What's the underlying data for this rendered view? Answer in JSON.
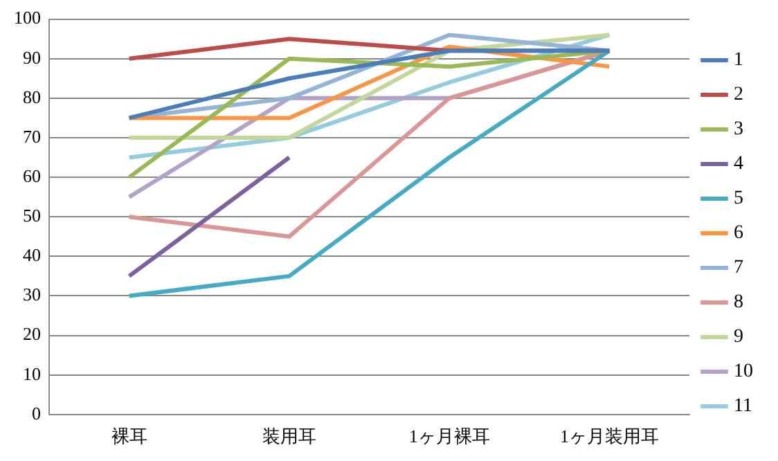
{
  "chart_data": {
    "type": "line",
    "categories": [
      "裸耳",
      "装用耳",
      "1ヶ月裸耳",
      "1ヶ月装用耳"
    ],
    "series": [
      {
        "name": "1",
        "color": "#4a7ebb",
        "values": [
          75,
          85,
          92,
          92
        ]
      },
      {
        "name": "2",
        "color": "#be4b48",
        "values": [
          90,
          95,
          92,
          92
        ]
      },
      {
        "name": "3",
        "color": "#98b954",
        "values": [
          60,
          90,
          88,
          92
        ]
      },
      {
        "name": "4",
        "color": "#7d60a0",
        "values": [
          35,
          65,
          null,
          null
        ]
      },
      {
        "name": "5",
        "color": "#46aac5",
        "values": [
          30,
          35,
          65,
          92
        ]
      },
      {
        "name": "6",
        "color": "#f79646",
        "values": [
          75,
          75,
          93,
          88
        ]
      },
      {
        "name": "7",
        "color": "#95b3d7",
        "values": [
          75,
          80,
          96,
          92
        ]
      },
      {
        "name": "8",
        "color": "#d99694",
        "values": [
          50,
          45,
          80,
          92
        ]
      },
      {
        "name": "9",
        "color": "#c3d69b",
        "values": [
          70,
          70,
          92,
          96
        ]
      },
      {
        "name": "10",
        "color": "#b3a2c7",
        "values": [
          55,
          80,
          80,
          92
        ]
      },
      {
        "name": "11",
        "color": "#93cddd",
        "values": [
          65,
          70,
          84,
          96
        ]
      }
    ],
    "ylim": [
      0,
      100
    ],
    "yticks": [
      0,
      10,
      20,
      30,
      40,
      50,
      60,
      70,
      80,
      90,
      100
    ],
    "grid": "y",
    "legend": "right",
    "marker": "none",
    "line_style": "solid"
  }
}
